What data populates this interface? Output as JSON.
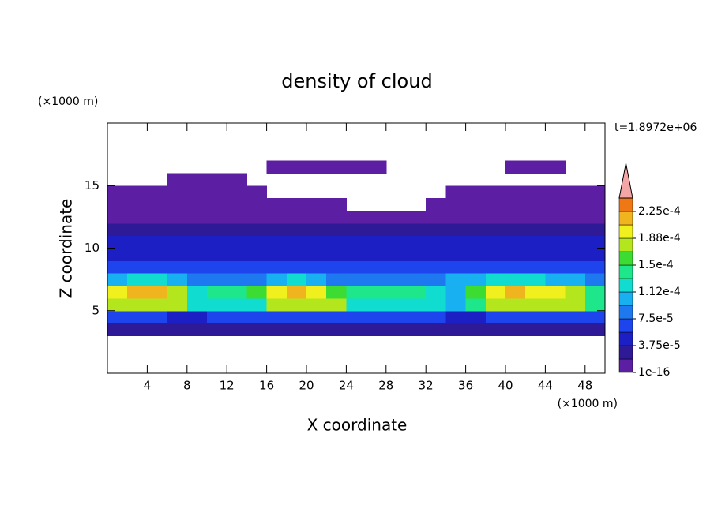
{
  "chart_data": {
    "type": "contourf",
    "title": "density of cloud",
    "x_label": "X coordinate",
    "y_label": "Z coordinate",
    "x_unit_label": "(×1000 m)",
    "y_unit_label": "(×1000 m)",
    "annotation": "t=1.8972e+06",
    "xlim": [
      0,
      50
    ],
    "ylim": [
      0,
      20
    ],
    "xticks": [
      4,
      8,
      12,
      16,
      20,
      24,
      28,
      32,
      36,
      40,
      44,
      48
    ],
    "yticks": [
      5,
      10,
      15
    ],
    "x": [
      1,
      3,
      5,
      7,
      9,
      11,
      13,
      15,
      17,
      19,
      21,
      23,
      25,
      27,
      29,
      31,
      33,
      35,
      37,
      39,
      41,
      43,
      45,
      47,
      49
    ],
    "y": [
      3.5,
      4.5,
      5.5,
      6.5,
      7.5,
      8.5,
      9.5,
      10.5,
      11.5,
      12.5,
      13.5,
      14.5,
      15.5,
      16.5
    ],
    "z": [
      [
        2.8e-05,
        2.8e-05,
        2.8e-05,
        2.8e-05,
        2.8e-05,
        2.8e-05,
        2.8e-05,
        2.8e-05,
        2.8e-05,
        2.8e-05,
        2.8e-05,
        2.8e-05,
        2.8e-05,
        2.8e-05,
        2.8e-05,
        2.8e-05,
        2.8e-05,
        2.8e-05,
        2.8e-05,
        2.8e-05,
        2.8e-05,
        2.8e-05,
        2.8e-05,
        2.8e-05,
        2.8e-05
      ],
      [
        6.6e-05,
        6.6e-05,
        6.6e-05,
        4.7e-05,
        4.7e-05,
        6.6e-05,
        6.6e-05,
        6.6e-05,
        6.6e-05,
        6.6e-05,
        6.6e-05,
        6.6e-05,
        6.6e-05,
        6.6e-05,
        6.6e-05,
        6.6e-05,
        6.6e-05,
        4.7e-05,
        4.7e-05,
        6.6e-05,
        6.6e-05,
        6.6e-05,
        6.6e-05,
        6.6e-05,
        6.6e-05
      ],
      [
        0.000178,
        0.000178,
        0.000178,
        0.000178,
        0.000122,
        0.000122,
        0.000122,
        0.000122,
        0.000178,
        0.000178,
        0.000178,
        0.000178,
        0.000122,
        0.000122,
        0.000122,
        0.000122,
        0.000122,
        0.000103,
        0.000141,
        0.000178,
        0.000178,
        0.000178,
        0.000178,
        0.000178,
        0.000141
      ],
      [
        0.000197,
        0.000216,
        0.000216,
        0.000178,
        0.000122,
        0.000141,
        0.000141,
        0.000159,
        0.000197,
        0.000216,
        0.000197,
        0.000159,
        0.000141,
        0.000141,
        0.000141,
        0.000141,
        0.000122,
        0.000103,
        0.000159,
        0.000197,
        0.000216,
        0.000197,
        0.000197,
        0.000178,
        0.000141
      ],
      [
        0.000103,
        0.000122,
        0.000122,
        0.000103,
        8.4e-05,
        8.4e-05,
        8.4e-05,
        8.4e-05,
        0.000103,
        0.000122,
        0.000103,
        8.4e-05,
        8.4e-05,
        8.4e-05,
        8.4e-05,
        8.4e-05,
        8.4e-05,
        0.000103,
        0.000103,
        0.000122,
        0.000122,
        0.000122,
        0.000103,
        0.000103,
        8.4e-05
      ],
      [
        6.6e-05,
        6.6e-05,
        6.6e-05,
        6.6e-05,
        6.6e-05,
        6.6e-05,
        6.6e-05,
        6.6e-05,
        6.6e-05,
        6.6e-05,
        6.6e-05,
        6.6e-05,
        6.6e-05,
        6.6e-05,
        6.6e-05,
        6.6e-05,
        6.6e-05,
        6.6e-05,
        6.6e-05,
        6.6e-05,
        6.6e-05,
        6.6e-05,
        6.6e-05,
        6.6e-05,
        6.6e-05
      ],
      [
        4.7e-05,
        4.7e-05,
        4.7e-05,
        4.7e-05,
        4.7e-05,
        4.7e-05,
        4.7e-05,
        4.7e-05,
        4.7e-05,
        4.7e-05,
        4.7e-05,
        4.7e-05,
        4.7e-05,
        4.7e-05,
        4.7e-05,
        4.7e-05,
        4.7e-05,
        4.7e-05,
        4.7e-05,
        4.7e-05,
        4.7e-05,
        4.7e-05,
        4.7e-05,
        4.7e-05,
        4.7e-05
      ],
      [
        4.7e-05,
        4.7e-05,
        4.7e-05,
        4.7e-05,
        4.7e-05,
        4.7e-05,
        4.7e-05,
        4.7e-05,
        4.7e-05,
        4.7e-05,
        4.7e-05,
        4.7e-05,
        4.7e-05,
        4.7e-05,
        4.7e-05,
        4.7e-05,
        4.7e-05,
        4.7e-05,
        4.7e-05,
        4.7e-05,
        4.7e-05,
        4.7e-05,
        4.7e-05,
        4.7e-05,
        4.7e-05
      ],
      [
        2.8e-05,
        2.8e-05,
        2.8e-05,
        2.8e-05,
        2.8e-05,
        2.8e-05,
        2.8e-05,
        2.8e-05,
        2.8e-05,
        2.8e-05,
        2.8e-05,
        2.8e-05,
        2.8e-05,
        2.8e-05,
        2.8e-05,
        2.8e-05,
        2.8e-05,
        2.8e-05,
        2.8e-05,
        2.8e-05,
        2.8e-05,
        2.8e-05,
        2.8e-05,
        2.8e-05,
        2.8e-05
      ],
      [
        9e-06,
        9e-06,
        9e-06,
        9e-06,
        9e-06,
        9e-06,
        9e-06,
        9e-06,
        9e-06,
        9e-06,
        9e-06,
        9e-06,
        9e-06,
        9e-06,
        9e-06,
        9e-06,
        9e-06,
        9e-06,
        9e-06,
        9e-06,
        9e-06,
        9e-06,
        9e-06,
        9e-06,
        9e-06
      ],
      [
        9e-06,
        9e-06,
        9e-06,
        9e-06,
        9e-06,
        9e-06,
        9e-06,
        9e-06,
        9e-06,
        9e-06,
        9e-06,
        9e-06,
        null,
        null,
        null,
        null,
        9e-06,
        9e-06,
        9e-06,
        9e-06,
        9e-06,
        9e-06,
        9e-06,
        9e-06,
        9e-06
      ],
      [
        9e-06,
        9e-06,
        9e-06,
        9e-06,
        9e-06,
        9e-06,
        9e-06,
        9e-06,
        null,
        null,
        null,
        null,
        null,
        null,
        null,
        null,
        null,
        9e-06,
        9e-06,
        9e-06,
        9e-06,
        9e-06,
        9e-06,
        9e-06,
        9e-06
      ],
      [
        null,
        null,
        null,
        9e-06,
        9e-06,
        9e-06,
        9e-06,
        null,
        null,
        null,
        null,
        null,
        null,
        null,
        null,
        null,
        null,
        null,
        null,
        null,
        null,
        null,
        null,
        null,
        null
      ],
      [
        null,
        null,
        null,
        null,
        null,
        null,
        null,
        null,
        9e-06,
        9e-06,
        9e-06,
        9e-06,
        9e-06,
        9e-06,
        null,
        null,
        null,
        null,
        null,
        null,
        9e-06,
        9e-06,
        9e-06,
        null,
        null
      ]
    ],
    "levels": [
      1e-16,
      1.875e-05,
      3.75e-05,
      5.625e-05,
      7.5e-05,
      9.375e-05,
      0.0001125,
      0.00013125,
      0.00015,
      0.00016875,
      0.0001875,
      0.00020625,
      0.000225,
      0.00024375
    ],
    "colors": [
      "#5c1ea3",
      "#2e1996",
      "#1c20c4",
      "#1e44ee",
      "#1e78f0",
      "#18b0f0",
      "#10dcd0",
      "#1ee68a",
      "#3cdc32",
      "#b4e61e",
      "#f0f01e",
      "#f0b41e",
      "#f07814",
      "#f01e1e"
    ],
    "extend_color": "#f4a6a6",
    "colorbar_ticks": [
      {
        "value": 1e-16,
        "label": "1e-16"
      },
      {
        "value": 3.75e-05,
        "label": "3.75e-5"
      },
      {
        "value": 7.5e-05,
        "label": "7.5e-5"
      },
      {
        "value": 0.0001125,
        "label": "1.12e-4"
      },
      {
        "value": 0.00015,
        "label": "1.5e-4"
      },
      {
        "value": 0.0001875,
        "label": "1.88e-4"
      },
      {
        "value": 0.000225,
        "label": "2.25e-4"
      }
    ]
  }
}
